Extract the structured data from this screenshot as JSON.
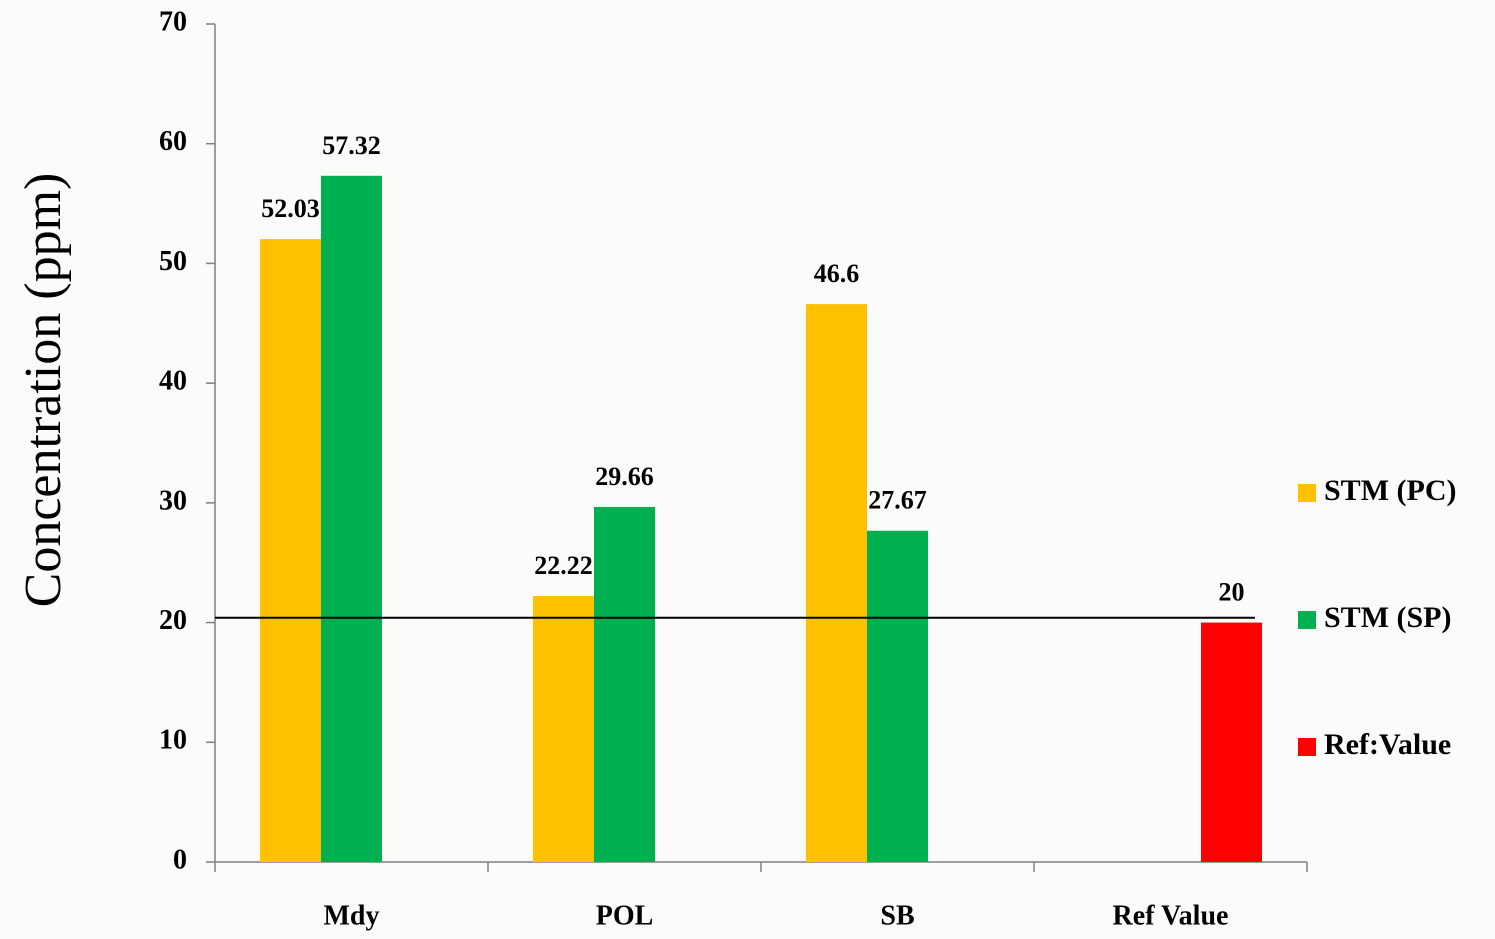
{
  "chart_data": {
    "type": "bar",
    "y_label": "Concentration (ppm)",
    "categories": [
      "Mdy",
      "POL",
      "SB",
      "Ref Value"
    ],
    "series": [
      {
        "name": "STM (PC)",
        "color": "#ffc000",
        "values": [
          52.03,
          22.22,
          46.6,
          null
        ]
      },
      {
        "name": "STM (SP)",
        "color": "#00b050",
        "values": [
          57.32,
          29.66,
          27.67,
          null
        ]
      },
      {
        "name": "Ref:Value",
        "color": "#ff0000",
        "values": [
          null,
          null,
          null,
          20
        ]
      }
    ],
    "reference_line": 20.4,
    "ylim": [
      0,
      70
    ],
    "yticks": [
      0,
      10,
      20,
      30,
      40,
      50,
      60,
      70
    ],
    "legend": "right"
  }
}
